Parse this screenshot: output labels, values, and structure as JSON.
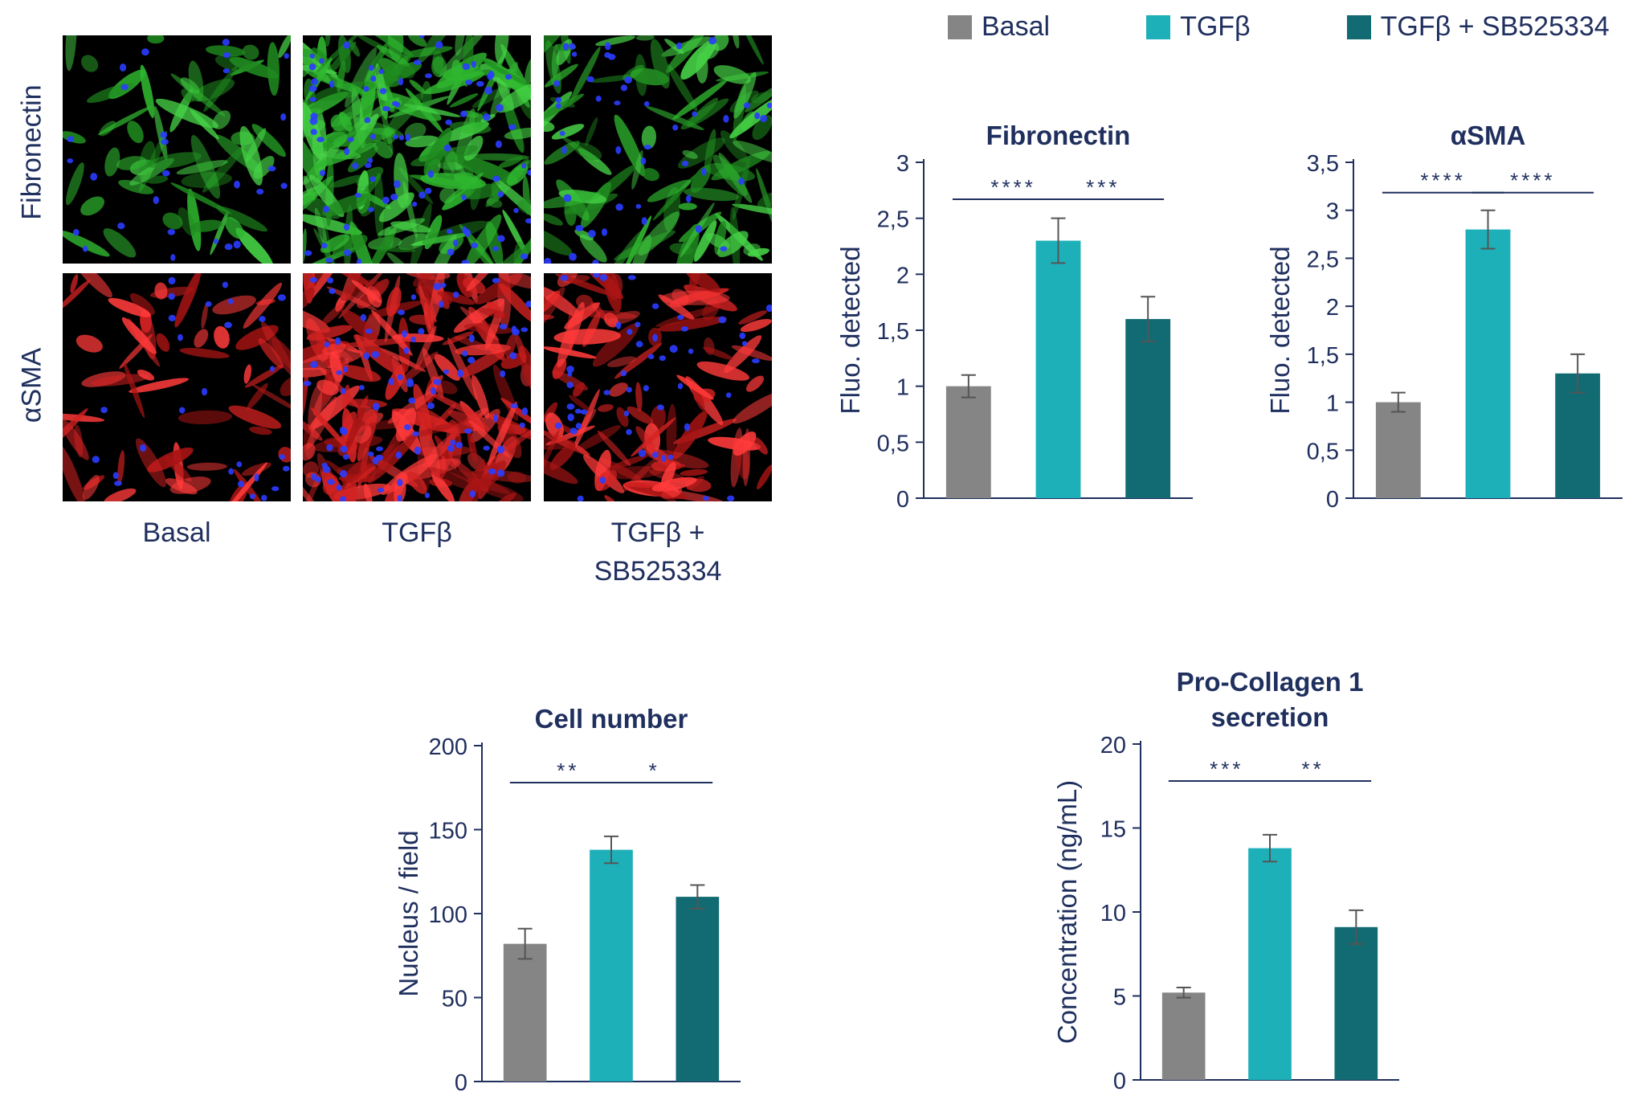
{
  "colors": {
    "basal": "#858585",
    "tgfb": "#1eb0b8",
    "tgfb_sb": "#126b73",
    "text": "#1f2f5e",
    "axis": "#1f2f5e"
  },
  "legend": [
    {
      "label": "Basal",
      "color": "#858585"
    },
    {
      "label": "TGFβ",
      "color": "#1eb0b8"
    },
    {
      "label": "TGFβ + SB525334",
      "color": "#126b73"
    }
  ],
  "images": {
    "row_labels": [
      "Fibronectin",
      "αSMA"
    ],
    "col_labels": [
      "Basal",
      "TGFβ",
      "TGFβ +\nSB525334"
    ]
  },
  "chart_data": [
    {
      "type": "bar",
      "title": "Fibronectin",
      "ylabel": "Fluo. detected",
      "categories": [
        "Basal",
        "TGFβ",
        "TGFβ + SB525334"
      ],
      "values": [
        1.0,
        2.3,
        1.6
      ],
      "errors": [
        0.1,
        0.2,
        0.2
      ],
      "ylim": [
        0,
        3
      ],
      "yticks": [
        0,
        0.5,
        1,
        1.5,
        2,
        2.5,
        3
      ],
      "ytick_labels": [
        "0",
        "0,5",
        "1",
        "1,5",
        "2",
        "2,5",
        "3"
      ],
      "significance": [
        {
          "from": 0,
          "to": 1,
          "label": "****"
        },
        {
          "from": 1,
          "to": 2,
          "label": "***"
        }
      ]
    },
    {
      "type": "bar",
      "title": "αSMA",
      "ylabel": "Fluo. detected",
      "categories": [
        "Basal",
        "TGFβ",
        "TGFβ + SB525334"
      ],
      "values": [
        1.0,
        2.8,
        1.3
      ],
      "errors": [
        0.1,
        0.2,
        0.2
      ],
      "ylim": [
        0,
        3.5
      ],
      "yticks": [
        0,
        0.5,
        1,
        1.5,
        2,
        2.5,
        3,
        3.5
      ],
      "ytick_labels": [
        "0",
        "0,5",
        "1",
        "1,5",
        "2",
        "2,5",
        "3",
        "3,5"
      ],
      "significance": [
        {
          "from": 0,
          "to": 1,
          "label": "****"
        },
        {
          "from": 1,
          "to": 2,
          "label": "****"
        }
      ]
    },
    {
      "type": "bar",
      "title": "Cell number",
      "ylabel": "Nucleus / field",
      "categories": [
        "Basal",
        "TGFβ",
        "TGFβ + SB525334"
      ],
      "values": [
        82,
        138,
        110
      ],
      "errors": [
        9,
        8,
        7
      ],
      "ylim": [
        0,
        200
      ],
      "yticks": [
        0,
        50,
        100,
        150,
        200
      ],
      "ytick_labels": [
        "0",
        "50",
        "100",
        "150",
        "200"
      ],
      "significance": [
        {
          "from": 0,
          "to": 1,
          "label": "**"
        },
        {
          "from": 1,
          "to": 2,
          "label": "*"
        }
      ]
    },
    {
      "type": "bar",
      "title": "Pro-Collagen 1\nsecretion",
      "ylabel": "Concentration (ng/mL)",
      "categories": [
        "Basal",
        "TGFβ",
        "TGFβ + SB525334"
      ],
      "values": [
        5.2,
        13.8,
        9.1
      ],
      "errors": [
        0.3,
        0.8,
        1.0
      ],
      "ylim": [
        0,
        20
      ],
      "yticks": [
        0,
        5,
        10,
        15,
        20
      ],
      "ytick_labels": [
        "0",
        "5",
        "10",
        "15",
        "20"
      ],
      "significance": [
        {
          "from": 0,
          "to": 1,
          "label": "***"
        },
        {
          "from": 1,
          "to": 2,
          "label": "**"
        }
      ]
    }
  ]
}
